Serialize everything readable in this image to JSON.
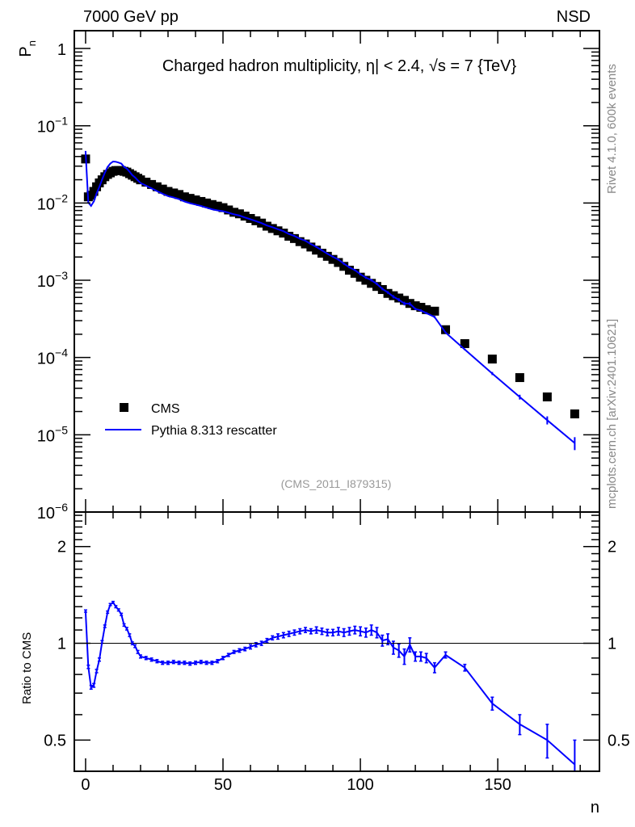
{
  "header": {
    "left": "7000 GeV pp",
    "right": "NSD",
    "side_top": "Rivet 4.1.0,  600k events",
    "side_bottom": "mcplots.cern.ch [arXiv:2401.10621]"
  },
  "chart_data": {
    "type": "scatter",
    "title": "Charged hadron multiplicity, η| < 2.4, √s = 7 {TeV}",
    "analysis_id": "(CMS_2011_I879315)",
    "xlabel": "n",
    "ylabel_main": "P",
    "ylabel_main_sub": "n",
    "ylabel_ratio": "Ratio to CMS",
    "xlim": [
      -4.1,
      187
    ],
    "ylim_main": [
      1e-06,
      1.7
    ],
    "ylim_ratio": [
      0.4,
      2.56
    ],
    "y_scale": "log",
    "legend_position": "bottom-left",
    "legend": [
      {
        "name": "CMS",
        "marker": "square",
        "color": "#000000"
      },
      {
        "name": "Pythia 8.313 rescatter",
        "marker": "line",
        "color": "#0000ff"
      }
    ],
    "x_ticks": [
      "0",
      "50",
      "100",
      "150"
    ],
    "x_tick_values": [
      0,
      50,
      100,
      150
    ],
    "y_ticks_main": [
      {
        "base": "1",
        "exp": "",
        "value": 0
      },
      {
        "base": "10",
        "exp": "−1",
        "value": -1
      },
      {
        "base": "10",
        "exp": "−2",
        "value": -2
      },
      {
        "base": "10",
        "exp": "−3",
        "value": -3
      },
      {
        "base": "10",
        "exp": "−4",
        "value": -4
      },
      {
        "base": "10",
        "exp": "−5",
        "value": -5
      },
      {
        "base": "10",
        "exp": "−6",
        "value": -6
      }
    ],
    "y_ticks_ratio": [
      "2",
      "1",
      "0.5"
    ],
    "y_tick_values_ratio": [
      2,
      1,
      0.5
    ],
    "n": [
      0,
      1,
      2,
      3,
      4,
      5,
      6,
      7,
      8,
      9,
      10,
      11,
      12,
      13,
      14,
      15,
      16,
      17,
      18,
      19,
      20,
      22,
      24,
      26,
      28,
      30,
      32,
      34,
      36,
      38,
      40,
      42,
      44,
      46,
      48,
      50,
      52,
      54,
      56,
      58,
      60,
      62,
      64,
      66,
      68,
      70,
      72,
      74,
      76,
      78,
      80,
      82,
      84,
      86,
      88,
      90,
      92,
      94,
      96,
      98,
      100,
      102,
      104,
      106,
      108,
      110,
      112,
      114,
      116,
      118,
      120,
      122,
      124,
      127,
      131,
      138,
      148,
      158,
      168,
      178
    ],
    "cms_log10_pn": [
      -1.43,
      -1.92,
      -1.9,
      -1.85,
      -1.79,
      -1.74,
      -1.7,
      -1.66,
      -1.63,
      -1.61,
      -1.59,
      -1.58,
      -1.58,
      -1.58,
      -1.59,
      -1.6,
      -1.62,
      -1.64,
      -1.66,
      -1.68,
      -1.7,
      -1.73,
      -1.76,
      -1.79,
      -1.82,
      -1.85,
      -1.87,
      -1.89,
      -1.92,
      -1.94,
      -1.96,
      -1.98,
      -2.0,
      -2.02,
      -2.04,
      -2.06,
      -2.09,
      -2.12,
      -2.14,
      -2.17,
      -2.2,
      -2.23,
      -2.26,
      -2.3,
      -2.33,
      -2.36,
      -2.39,
      -2.43,
      -2.46,
      -2.5,
      -2.53,
      -2.57,
      -2.61,
      -2.65,
      -2.69,
      -2.73,
      -2.77,
      -2.82,
      -2.87,
      -2.91,
      -2.96,
      -3.0,
      -3.04,
      -3.08,
      -3.12,
      -3.17,
      -3.2,
      -3.23,
      -3.26,
      -3.3,
      -3.33,
      -3.35,
      -3.38,
      -3.4,
      -3.64,
      -3.82,
      -4.02,
      -4.26,
      -4.51,
      -4.73
    ],
    "mc_ratio": [
      1.26,
      0.845,
      0.73,
      0.74,
      0.82,
      0.89,
      1.01,
      1.13,
      1.25,
      1.32,
      1.34,
      1.3,
      1.27,
      1.23,
      1.14,
      1.11,
      1.06,
      1.0,
      0.98,
      0.94,
      0.91,
      0.9,
      0.89,
      0.88,
      0.87,
      0.87,
      0.875,
      0.87,
      0.87,
      0.865,
      0.87,
      0.875,
      0.87,
      0.87,
      0.88,
      0.9,
      0.92,
      0.94,
      0.95,
      0.96,
      0.975,
      0.99,
      1.0,
      1.02,
      1.04,
      1.05,
      1.06,
      1.07,
      1.08,
      1.09,
      1.1,
      1.09,
      1.1,
      1.09,
      1.08,
      1.08,
      1.09,
      1.08,
      1.09,
      1.1,
      1.09,
      1.08,
      1.1,
      1.08,
      1.02,
      1.03,
      0.97,
      0.95,
      0.91,
      0.99,
      0.91,
      0.91,
      0.9,
      0.84,
      0.92,
      0.84,
      0.65,
      0.56,
      0.5,
      0.42
    ],
    "mc_ratio_err": [
      0.01,
      0.01,
      0.01,
      0.01,
      0.01,
      0.01,
      0.01,
      0.01,
      0.01,
      0.01,
      0.01,
      0.01,
      0.01,
      0.01,
      0.01,
      0.01,
      0.01,
      0.01,
      0.01,
      0.01,
      0.01,
      0.01,
      0.01,
      0.01,
      0.01,
      0.01,
      0.01,
      0.01,
      0.01,
      0.01,
      0.01,
      0.01,
      0.01,
      0.01,
      0.01,
      0.01,
      0.01,
      0.01,
      0.012,
      0.012,
      0.015,
      0.015,
      0.015,
      0.015,
      0.015,
      0.02,
      0.02,
      0.02,
      0.02,
      0.02,
      0.02,
      0.02,
      0.025,
      0.025,
      0.025,
      0.025,
      0.03,
      0.03,
      0.03,
      0.03,
      0.035,
      0.035,
      0.04,
      0.04,
      0.04,
      0.04,
      0.045,
      0.045,
      0.05,
      0.05,
      0.03,
      0.03,
      0.03,
      0.03,
      0.02,
      0.02,
      0.03,
      0.04,
      0.06,
      0.08
    ]
  }
}
